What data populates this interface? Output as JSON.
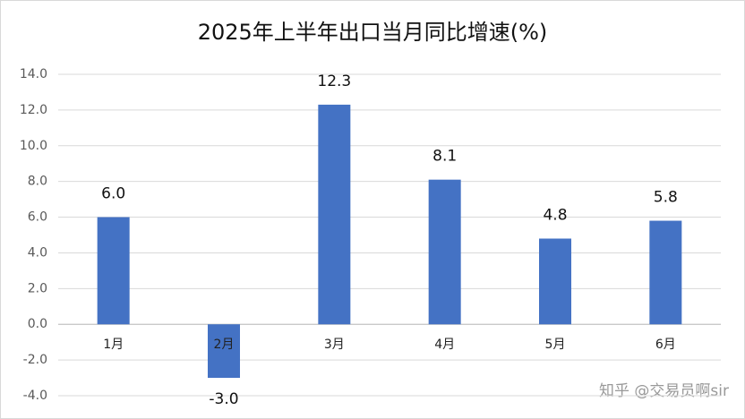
{
  "chart_data": {
    "type": "bar",
    "title": "2025年上半年出口当月同比增速(%)",
    "categories": [
      "1月",
      "2月",
      "3月",
      "4月",
      "5月",
      "6月"
    ],
    "values": [
      6.0,
      -3.0,
      12.3,
      8.1,
      4.8,
      5.8
    ],
    "value_labels": [
      "6.0",
      "-3.0",
      "12.3",
      "8.1",
      "4.8",
      "5.8"
    ],
    "color": "#4472c4",
    "ylim": [
      -4,
      14
    ],
    "yticks": [
      {
        "value": -4,
        "label": "-4.0"
      },
      {
        "value": -2,
        "label": "-2.0"
      },
      {
        "value": 0,
        "label": "0.0"
      },
      {
        "value": 2,
        "label": "2.0"
      },
      {
        "value": 4,
        "label": "4.0"
      },
      {
        "value": 6,
        "label": "6.0"
      },
      {
        "value": 8,
        "label": "8.0"
      },
      {
        "value": 10,
        "label": "10.0"
      },
      {
        "value": 12,
        "label": "12.0"
      },
      {
        "value": 14,
        "label": "14.0"
      }
    ],
    "grid": true,
    "watermark": "知乎 @交易员啊sir"
  }
}
